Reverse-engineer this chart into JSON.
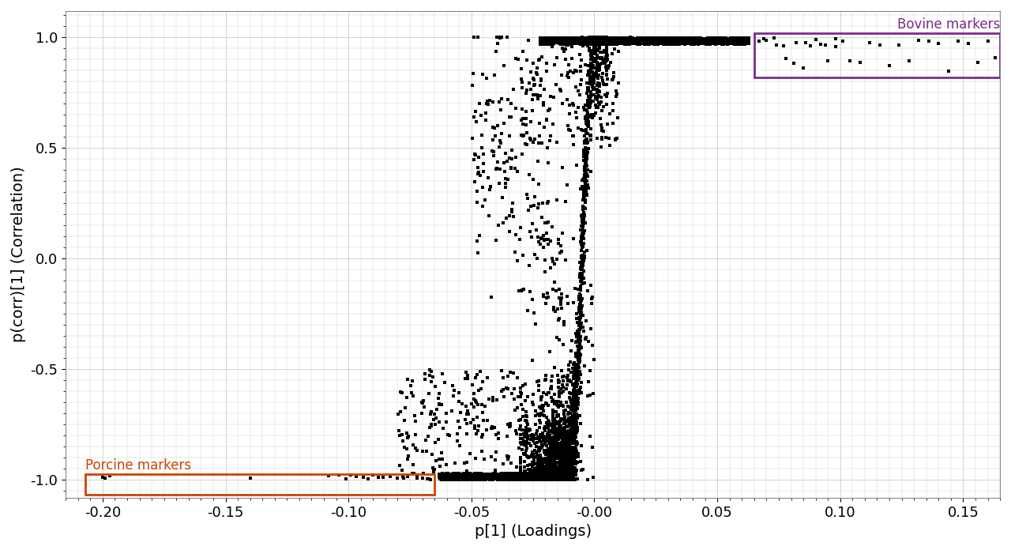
{
  "xlabel": "p[1] (Loadings)",
  "ylabel": "p(corr)[1] (Correlation)",
  "xlim": [
    -0.215,
    0.165
  ],
  "ylim": [
    -1.08,
    1.12
  ],
  "xticks": [
    -0.2,
    -0.15,
    -0.1,
    -0.05,
    -0.0,
    0.05,
    0.1,
    0.15
  ],
  "yticks": [
    -1.0,
    -0.5,
    0.0,
    0.5,
    1.0
  ],
  "xtick_labels": [
    "-0.20",
    "-0.15",
    "-0.10",
    "-0.05",
    "-0.00",
    "0.05",
    "0.10",
    "0.15"
  ],
  "ytick_labels": [
    "-1.0",
    "-0.5",
    "0.0",
    "0.5",
    "1.0"
  ],
  "point_color": "#000000",
  "point_size": 9,
  "background_color": "#ffffff",
  "grid_color": "#cccccc",
  "bovine_box_color": "#7b2d8b",
  "porcine_box_color": "#cc4400",
  "bovine_label": "Bovine markers",
  "porcine_label": "Porcine markers",
  "label_fontsize": 14,
  "tick_fontsize": 13,
  "annotation_fontsize": 12
}
